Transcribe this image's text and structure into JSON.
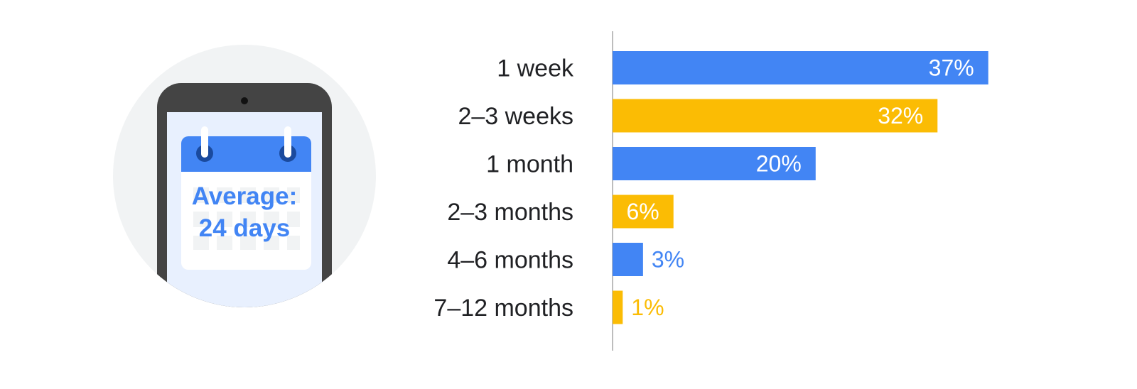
{
  "illustration": {
    "average_line1": "Average:",
    "average_line2": "24 days",
    "colors": {
      "accent": "#4285F4",
      "phone": "#444444",
      "circle": "#F1F3F4",
      "screen": "#E8F0FE"
    }
  },
  "chart_data": {
    "type": "bar",
    "orientation": "horizontal",
    "categories": [
      "1 week",
      "2–3 weeks",
      "1 month",
      "2–3 months",
      "4–6 months",
      "7–12 months"
    ],
    "values": [
      37,
      32,
      20,
      6,
      3,
      1
    ],
    "value_labels": [
      "37%",
      "32%",
      "20%",
      "6%",
      "3%",
      "1%"
    ],
    "bar_colors": [
      "#4285F4",
      "#FBBC04",
      "#4285F4",
      "#FBBC04",
      "#4285F4",
      "#FBBC04"
    ],
    "xlim": [
      0,
      38
    ],
    "grid": false,
    "title": "",
    "xlabel": "",
    "ylabel": ""
  }
}
